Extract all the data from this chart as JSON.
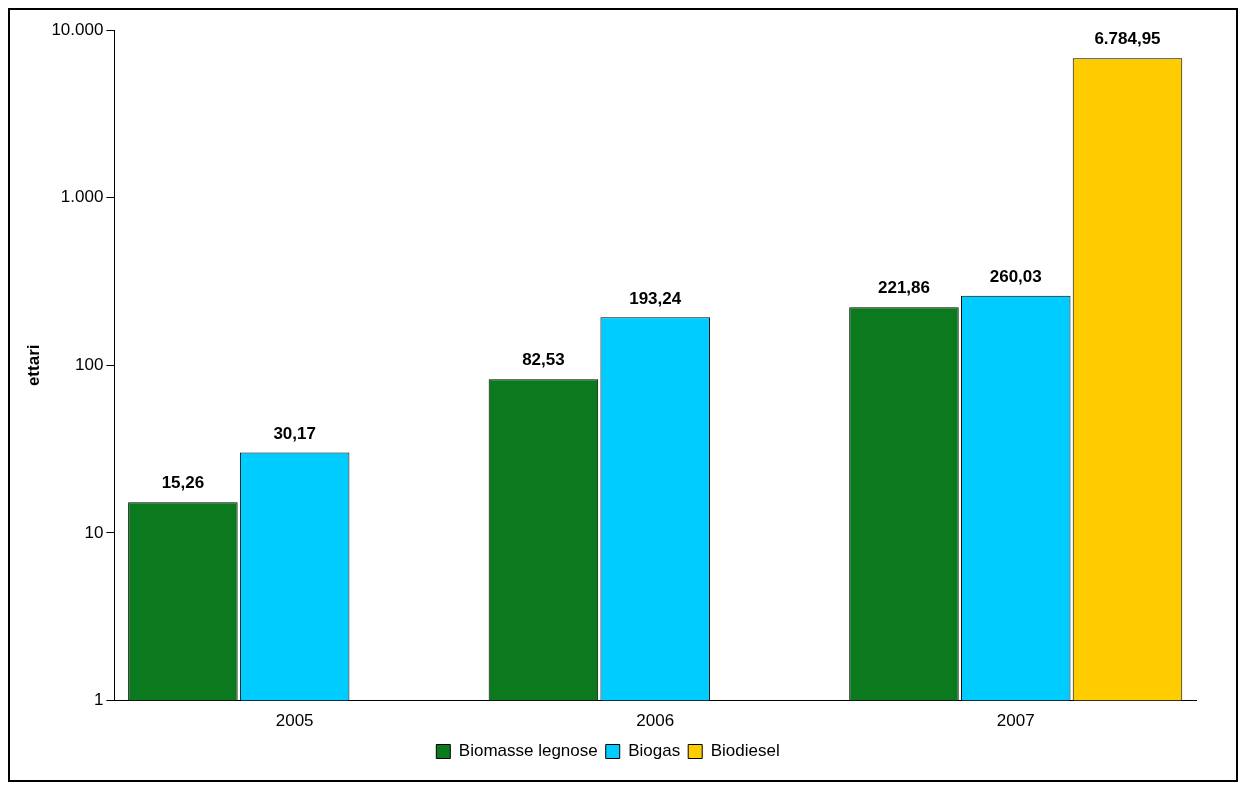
{
  "chart_data": {
    "type": "bar",
    "ylabel": "ettari",
    "categories": [
      "2005",
      "2006",
      "2007"
    ],
    "series": [
      {
        "name": "Biomasse legnose",
        "color": "#0b7a1e",
        "values": [
          15.26,
          82.53,
          221.86
        ],
        "value_labels": [
          "15,26",
          "82,53",
          "221,86"
        ]
      },
      {
        "name": "Biogas",
        "color": "#00ccff",
        "values": [
          30.17,
          193.24,
          260.03
        ],
        "value_labels": [
          "30,17",
          "193,24",
          "260,03"
        ]
      },
      {
        "name": "Biodiesel",
        "color": "#ffcc00",
        "values": [
          null,
          null,
          6784.95
        ],
        "value_labels": [
          null,
          null,
          "6.784,95"
        ]
      }
    ],
    "log": "y",
    "ylim": [
      1,
      10000
    ],
    "yticks": [
      1,
      10,
      100,
      {
        "value": 1000,
        "label": "1.000"
      },
      {
        "value": 10000,
        "label": "10.000"
      }
    ],
    "grid": false,
    "legend": "bottom"
  }
}
